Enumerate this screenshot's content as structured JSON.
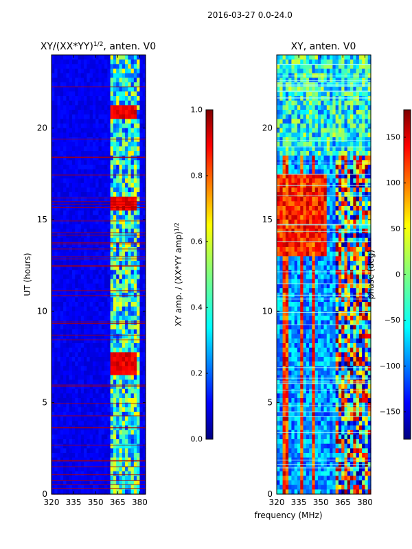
{
  "figure": {
    "suptitle": "2016-03-27 0.0-24.0"
  },
  "colors": {
    "background": "#ffffff",
    "axis": "#000000",
    "jet": [
      "#00007f",
      "#0000ff",
      "#007fff",
      "#00ffff",
      "#7fff7f",
      "#ffff00",
      "#ff7f00",
      "#ff0000",
      "#7f0000"
    ]
  },
  "chart_data": [
    {
      "type": "heatmap",
      "title_base": "XY/(XX*YY)",
      "title_exp": "1/2",
      "title_suffix": ", anten. V0",
      "xlabel": "",
      "ylabel": "UT (hours)",
      "xlim": [
        320,
        384
      ],
      "ylim": [
        0,
        24
      ],
      "xticks": [
        320,
        335,
        350,
        365,
        380
      ],
      "yticks": [
        0,
        5,
        10,
        15,
        20
      ],
      "colorbar": {
        "label_base": "XY amp. / (XX*YY amp)",
        "label_exp": "1/2",
        "range": [
          0.0,
          1.0
        ],
        "ticks": [
          "0.0",
          "0.2",
          "0.4",
          "0.6",
          "0.8",
          "1.0"
        ]
      }
    },
    {
      "type": "heatmap",
      "title": "XY, anten. V0",
      "xlabel": "frequency (MHz)",
      "ylabel": "",
      "xlim": [
        320,
        384
      ],
      "ylim": [
        0,
        24
      ],
      "xticks": [
        320,
        335,
        350,
        365,
        380
      ],
      "yticks": [
        0,
        5,
        10,
        15,
        20
      ],
      "colorbar": {
        "label": "phase (deg)",
        "range": [
          -180,
          180
        ],
        "ticks": [
          "−150",
          "−100",
          "−50",
          "0",
          "50",
          "100",
          "150"
        ]
      }
    }
  ]
}
